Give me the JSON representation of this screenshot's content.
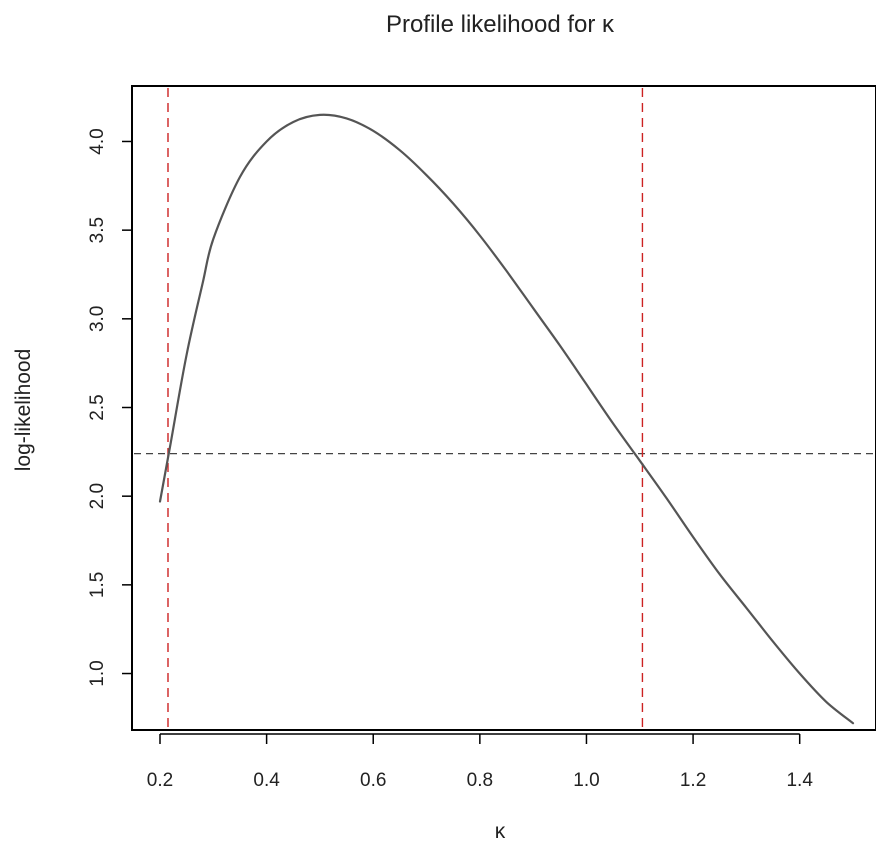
{
  "chart_data": {
    "type": "line",
    "title": "Profile likelihood for κ",
    "xlabel": "κ",
    "ylabel": "log-likelihood",
    "xlim": [
      0.2,
      1.5
    ],
    "ylim": [
      0.8,
      4.2
    ],
    "x_ticks": [
      {
        "value": 0.2,
        "label": "0.2"
      },
      {
        "value": 0.4,
        "label": "0.4"
      },
      {
        "value": 0.6,
        "label": "0.6"
      },
      {
        "value": 0.8,
        "label": "0.8"
      },
      {
        "value": 1.0,
        "label": "1.0"
      },
      {
        "value": 1.2,
        "label": "1.2"
      },
      {
        "value": 1.4,
        "label": "1.4"
      }
    ],
    "y_ticks": [
      {
        "value": 1.0,
        "label": "1.0"
      },
      {
        "value": 1.5,
        "label": "1.5"
      },
      {
        "value": 2.0,
        "label": "2.0"
      },
      {
        "value": 2.5,
        "label": "2.5"
      },
      {
        "value": 3.0,
        "label": "3.0"
      },
      {
        "value": 3.5,
        "label": "3.5"
      },
      {
        "value": 4.0,
        "label": "4.0"
      }
    ],
    "series": [
      {
        "color": "#555555",
        "x": [
          0.2,
          0.22,
          0.25,
          0.28,
          0.3,
          0.35,
          0.4,
          0.45,
          0.5,
          0.55,
          0.6,
          0.65,
          0.7,
          0.75,
          0.8,
          0.85,
          0.9,
          0.95,
          1.0,
          1.05,
          1.1,
          1.15,
          1.2,
          1.25,
          1.3,
          1.35,
          1.4,
          1.45,
          1.5
        ],
        "y": [
          1.97,
          2.3,
          2.8,
          3.2,
          3.45,
          3.8,
          4.0,
          4.11,
          4.15,
          4.13,
          4.06,
          3.95,
          3.81,
          3.65,
          3.47,
          3.27,
          3.06,
          2.85,
          2.63,
          2.41,
          2.2,
          1.99,
          1.77,
          1.56,
          1.37,
          1.18,
          1.0,
          0.84,
          0.72
        ]
      }
    ],
    "reference_lines": {
      "horizontal_y": 2.24,
      "vertical_x": [
        0.215,
        1.105
      ],
      "color": "#cc2222"
    }
  }
}
